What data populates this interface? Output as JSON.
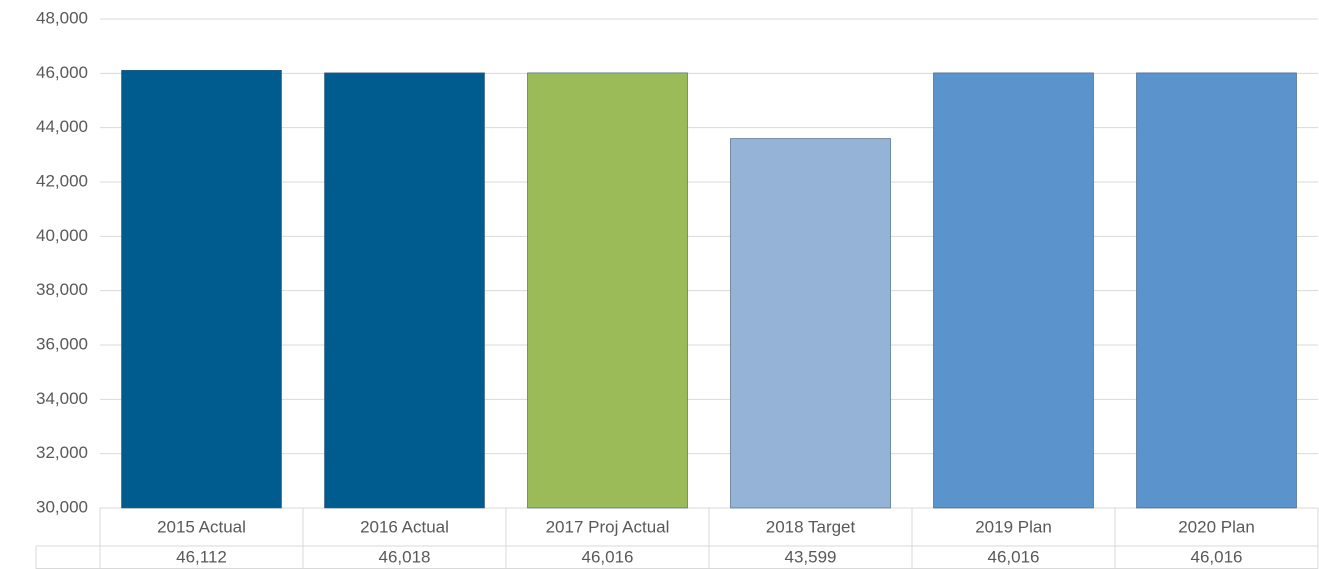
{
  "chart_data": {
    "type": "bar",
    "categories": [
      "2015 Actual",
      "2016 Actual",
      "2017 Proj Actual",
      "2018 Target",
      "2019 Plan",
      "2020 Plan"
    ],
    "values": [
      46112,
      46018,
      46016,
      43599,
      46016,
      46016
    ],
    "value_labels": [
      "46,112",
      "46,018",
      "46,016",
      "43,599",
      "46,016",
      "46,016"
    ],
    "colors": [
      "#005b8e",
      "#005b8e",
      "#9bbb59",
      "#95b3d7",
      "#5b94cc",
      "#5b94cc"
    ],
    "ylim": [
      30000,
      48000
    ],
    "yticks": [
      {
        "value": 30000,
        "label": "30,000"
      },
      {
        "value": 32000,
        "label": "32,000"
      },
      {
        "value": 34000,
        "label": "34,000"
      },
      {
        "value": 36000,
        "label": "36,000"
      },
      {
        "value": 38000,
        "label": "38,000"
      },
      {
        "value": 40000,
        "label": "40,000"
      },
      {
        "value": 42000,
        "label": "42,000"
      },
      {
        "value": 44000,
        "label": "44,000"
      },
      {
        "value": 46000,
        "label": "46,000"
      },
      {
        "value": 48000,
        "label": "48,000"
      }
    ],
    "grid": true
  }
}
